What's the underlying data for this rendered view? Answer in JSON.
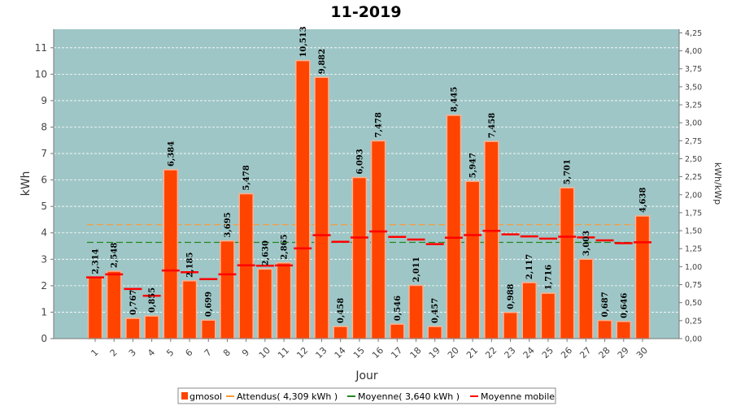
{
  "chart_data": {
    "type": "bar",
    "title": "11-2019",
    "xlabel": "Jour",
    "ylabel": "kWh",
    "ylabel_right": "kWh/kWp",
    "ylim": [
      0,
      11.7
    ],
    "y_ticks": [
      0,
      1,
      2,
      3,
      4,
      5,
      6,
      7,
      8,
      9,
      10,
      11
    ],
    "y2lim": [
      0,
      4.3
    ],
    "y2_ticks": [
      "0,00",
      "0,25",
      "0,50",
      "0,75",
      "1,00",
      "1,25",
      "1,50",
      "1,75",
      "2,00",
      "2,25",
      "2,50",
      "2,75",
      "3,00",
      "3,25",
      "3,50",
      "3,75",
      "4,00",
      "4,25"
    ],
    "categories": [
      "1",
      "2",
      "3",
      "4",
      "5",
      "6",
      "7",
      "8",
      "9",
      "10",
      "11",
      "12",
      "13",
      "14",
      "15",
      "16",
      "17",
      "18",
      "19",
      "20",
      "21",
      "22",
      "23",
      "24",
      "25",
      "26",
      "27",
      "28",
      "29",
      "30"
    ],
    "series": [
      {
        "name": "gmosol",
        "values": [
          2.314,
          2.548,
          0.767,
          0.855,
          6.384,
          2.185,
          0.699,
          3.695,
          5.478,
          2.63,
          2.865,
          10.513,
          9.882,
          0.458,
          6.093,
          7.478,
          0.546,
          2.011,
          0.457,
          8.445,
          5.947,
          7.458,
          0.988,
          2.117,
          1.716,
          5.701,
          3.003,
          0.687,
          0.646,
          4.638
        ],
        "labels": [
          "2,314",
          "2,548",
          "0,767",
          "0,855",
          "6,384",
          "2,185",
          "0,699",
          "3,695",
          "5,478",
          "2,630",
          "2,865",
          "10,513",
          "9,882",
          "0,458",
          "6,093",
          "7,478",
          "0,546",
          "2,011",
          "0,457",
          "8,445",
          "5,947",
          "7,458",
          "0,988",
          "2,117",
          "1,716",
          "5,701",
          "3,003",
          "0,687",
          "0,646",
          "4,638"
        ],
        "color": "#ff4400"
      },
      {
        "name": "Moyenne mobile",
        "values": [
          2.314,
          2.431,
          1.876,
          1.621,
          2.574,
          2.509,
          2.25,
          2.431,
          2.77,
          2.756,
          2.766,
          3.412,
          3.91,
          3.663,
          3.825,
          4.053,
          3.847,
          3.745,
          3.572,
          3.816,
          3.917,
          4.078,
          3.944,
          3.867,
          3.781,
          3.855,
          3.826,
          3.714,
          3.608,
          3.642
        ],
        "color": "#ff0000"
      }
    ],
    "reference_lines": [
      {
        "name": "Attendus( 4,309 kWh )",
        "value": 4.309,
        "color": "#ff9933"
      },
      {
        "name": "Moyenne( 3,640 kWh )",
        "value": 3.64,
        "color": "#228822"
      }
    ],
    "legend": {
      "placement": "bottom-center",
      "items": [
        "gmosol",
        "Attendus( 4,309 kWh )",
        "Moyenne( 3,640 kWh )",
        "Moyenne mobile"
      ]
    },
    "grid": true,
    "colors": {
      "plot_bg": "#9fc6c6",
      "bar": "#ff4400",
      "bar_highlight": "#ffb090",
      "grid": "#ffffff"
    }
  }
}
